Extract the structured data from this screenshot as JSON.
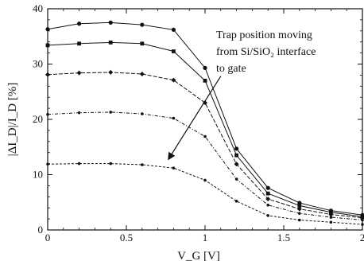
{
  "chart_data": {
    "type": "line",
    "xlabel": "V_G [V]",
    "ylabel": "|ΔI_D|/I_D [%]",
    "xlim": [
      0,
      2
    ],
    "ylim": [
      0,
      40
    ],
    "x_ticks": [
      "0",
      "0.5",
      "1",
      "1.5",
      "2"
    ],
    "y_ticks": [
      "0",
      "10",
      "20",
      "30",
      "40"
    ],
    "grid": false,
    "x": [
      0,
      0.2,
      0.4,
      0.6,
      0.8,
      1.0,
      1.2,
      1.4,
      1.6,
      1.8,
      2.0
    ],
    "series": [
      {
        "marker": "filled-circle",
        "values": [
          36.3,
          37.3,
          37.5,
          37.1,
          36.2,
          29.3,
          14.7,
          7.6,
          4.9,
          3.5,
          2.7
        ]
      },
      {
        "marker": "filled-square",
        "values": [
          33.4,
          33.7,
          33.9,
          33.7,
          32.3,
          27.0,
          13.5,
          6.6,
          4.4,
          3.2,
          2.4
        ]
      },
      {
        "marker": "diamond",
        "values": [
          28.1,
          28.4,
          28.5,
          28.2,
          27.1,
          23.0,
          11.9,
          5.6,
          3.8,
          2.8,
          2.2
        ]
      },
      {
        "marker": "small-dot",
        "values": [
          20.9,
          21.2,
          21.3,
          21.0,
          20.2,
          16.9,
          9.2,
          4.5,
          3.0,
          2.3,
          1.8
        ]
      },
      {
        "marker": "small-dot",
        "values": [
          11.9,
          12.0,
          12.0,
          11.8,
          11.2,
          9.0,
          5.2,
          2.6,
          1.8,
          1.4,
          1.0
        ]
      }
    ],
    "annotations": [
      {
        "text_lines": [
          "Trap position moving",
          "from Si/SiO₂ interface",
          "to gate"
        ],
        "arrow": {
          "from": [
            1.1,
            27.8
          ],
          "to": [
            0.77,
            12.9
          ]
        }
      }
    ]
  }
}
